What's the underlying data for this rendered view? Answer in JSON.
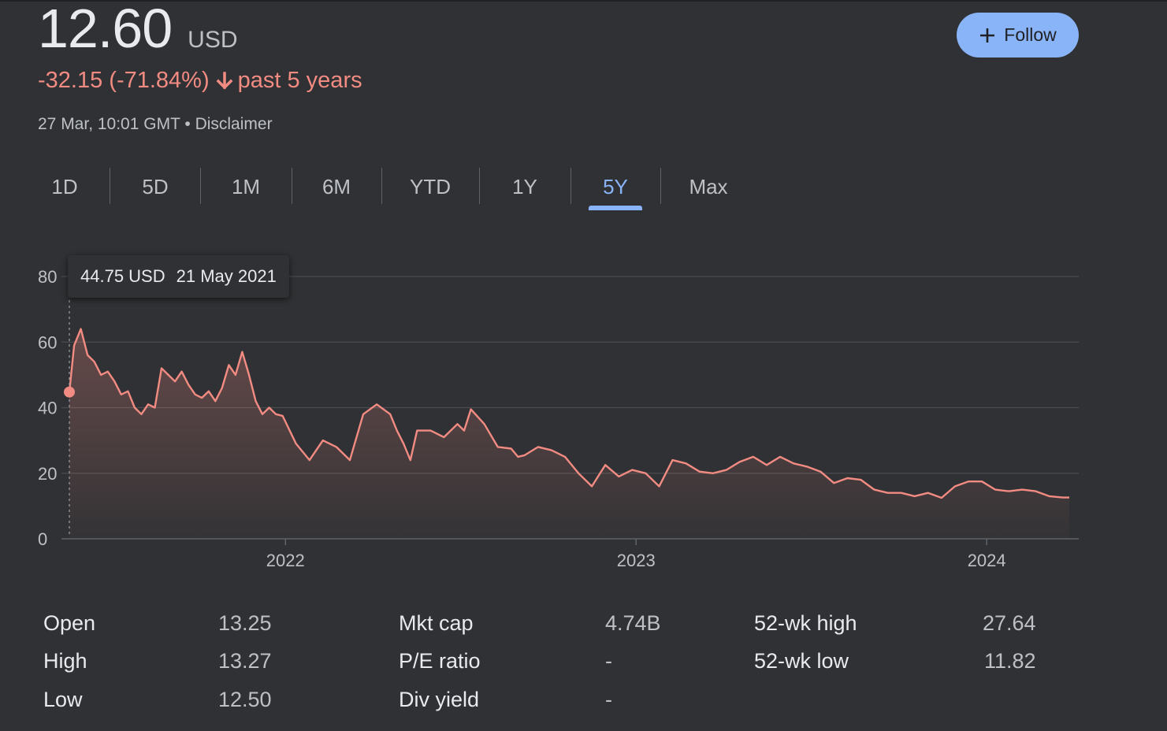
{
  "quote": {
    "price": "12.60",
    "currency": "USD",
    "change": "-32.15 (-71.84%)",
    "period": "past 5 years",
    "timestamp": "27 Mar, 10:01 GMT",
    "disclaimer": "Disclaimer",
    "follow_label": "Follow"
  },
  "colors": {
    "negative": "#f28b82",
    "accent": "#8ab4f8",
    "background": "#303134"
  },
  "icons": {
    "follow": "plus-icon",
    "change": "arrow-down-icon"
  },
  "tabs": [
    {
      "label": "1D",
      "active": false
    },
    {
      "label": "5D",
      "active": false
    },
    {
      "label": "1M",
      "active": false
    },
    {
      "label": "6M",
      "active": false
    },
    {
      "label": "YTD",
      "active": false
    },
    {
      "label": "1Y",
      "active": false
    },
    {
      "label": "5Y",
      "active": true
    },
    {
      "label": "Max",
      "active": false
    }
  ],
  "tooltip": {
    "value": "44.75 USD",
    "date": "21 May 2021"
  },
  "stats": [
    {
      "label": "Open",
      "value": "13.25"
    },
    {
      "label": "High",
      "value": "13.27"
    },
    {
      "label": "Low",
      "value": "12.50"
    },
    {
      "label": "Mkt cap",
      "value": "4.74B"
    },
    {
      "label": "P/E ratio",
      "value": "-"
    },
    {
      "label": "Div yield",
      "value": "-"
    },
    {
      "label": "52-wk high",
      "value": "27.64"
    },
    {
      "label": "52-wk low",
      "value": "11.82"
    }
  ],
  "chart_data": {
    "type": "area",
    "title": "",
    "xlabel": "",
    "ylabel": "",
    "ylim": [
      0,
      80
    ],
    "yticks": [
      0,
      20,
      40,
      60,
      80
    ],
    "xticks": [
      {
        "label": "2022",
        "date": "2022-01-01"
      },
      {
        "label": "2023",
        "date": "2023-01-01"
      },
      {
        "label": "2024",
        "date": "2024-01-01"
      }
    ],
    "xlim": [
      "2021-05-21",
      "2024-03-27"
    ],
    "grid": true,
    "highlight": {
      "x": "2021-05-21",
      "y": 44.75
    },
    "series": [
      {
        "color": "#f28b82",
        "x": [
          "2021-05-21",
          "2021-05-26",
          "2021-06-02",
          "2021-06-09",
          "2021-06-16",
          "2021-06-23",
          "2021-06-30",
          "2021-07-07",
          "2021-07-14",
          "2021-07-21",
          "2021-07-28",
          "2021-08-04",
          "2021-08-11",
          "2021-08-18",
          "2021-08-25",
          "2021-09-01",
          "2021-09-08",
          "2021-09-15",
          "2021-09-22",
          "2021-09-29",
          "2021-10-06",
          "2021-10-13",
          "2021-10-20",
          "2021-10-27",
          "2021-11-03",
          "2021-11-10",
          "2021-11-17",
          "2021-11-24",
          "2021-12-01",
          "2021-12-08",
          "2021-12-15",
          "2021-12-22",
          "2021-12-29",
          "2022-01-12",
          "2022-01-26",
          "2022-02-09",
          "2022-02-23",
          "2022-03-09",
          "2022-03-23",
          "2022-04-06",
          "2022-04-20",
          "2022-04-27",
          "2022-05-04",
          "2022-05-11",
          "2022-05-18",
          "2022-06-01",
          "2022-06-15",
          "2022-06-29",
          "2022-07-06",
          "2022-07-13",
          "2022-07-27",
          "2022-08-10",
          "2022-08-24",
          "2022-08-31",
          "2022-09-07",
          "2022-09-21",
          "2022-10-05",
          "2022-10-19",
          "2022-11-02",
          "2022-11-16",
          "2022-11-30",
          "2022-12-14",
          "2022-12-28",
          "2023-01-11",
          "2023-01-25",
          "2023-02-08",
          "2023-02-22",
          "2023-03-08",
          "2023-03-22",
          "2023-04-05",
          "2023-04-19",
          "2023-05-03",
          "2023-05-17",
          "2023-05-31",
          "2023-06-14",
          "2023-06-28",
          "2023-07-12",
          "2023-07-26",
          "2023-08-09",
          "2023-08-23",
          "2023-09-06",
          "2023-09-20",
          "2023-10-04",
          "2023-10-18",
          "2023-11-01",
          "2023-11-15",
          "2023-11-29",
          "2023-12-13",
          "2023-12-27",
          "2024-01-10",
          "2024-01-24",
          "2024-02-07",
          "2024-02-21",
          "2024-03-06",
          "2024-03-20",
          "2024-03-27"
        ],
        "y": [
          44.75,
          59,
          64,
          56,
          54,
          50,
          51,
          48,
          44,
          45,
          40,
          38,
          41,
          40,
          52,
          50,
          48,
          51,
          47,
          44,
          43,
          45,
          42,
          46,
          53,
          50,
          57,
          50,
          42,
          38,
          40,
          38,
          37.5,
          29,
          24,
          30,
          28,
          24,
          38,
          41,
          38,
          33,
          29,
          24,
          33,
          33,
          31,
          35,
          33,
          39.5,
          35,
          28,
          27.5,
          25,
          25.5,
          28,
          27,
          25,
          20,
          16,
          22.5,
          19,
          21,
          20,
          16,
          24,
          23,
          20.5,
          20,
          21,
          23.5,
          25,
          22.5,
          25,
          23,
          22,
          20.5,
          17,
          18.5,
          18,
          15,
          14,
          14,
          13,
          14,
          12.5,
          16,
          17.5,
          17.5,
          15,
          14.5,
          15,
          14.5,
          13,
          12.6,
          12.6
        ]
      }
    ]
  }
}
